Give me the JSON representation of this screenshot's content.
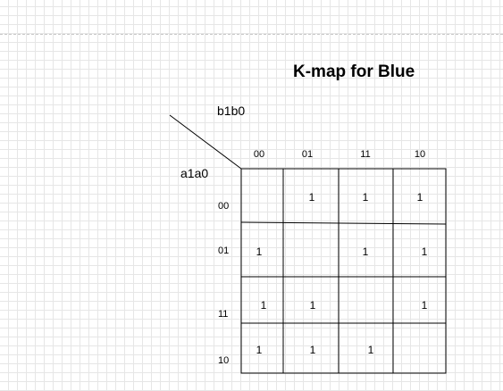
{
  "title": "K-map for Blue",
  "column_variables": "b1b0",
  "row_variables": "a1a0",
  "column_headers": [
    "00",
    "01",
    "11",
    "10"
  ],
  "row_headers": [
    "00",
    "01",
    "11",
    "10"
  ],
  "cells": [
    [
      "",
      "1",
      "1",
      "1"
    ],
    [
      "1",
      "",
      "1",
      "1"
    ],
    [
      "1",
      "1",
      "",
      "1"
    ],
    [
      "1",
      "1",
      "1",
      ""
    ]
  ],
  "colors": {
    "line": "#000000",
    "grid": "#e6e6e6",
    "background": "#ffffff"
  }
}
